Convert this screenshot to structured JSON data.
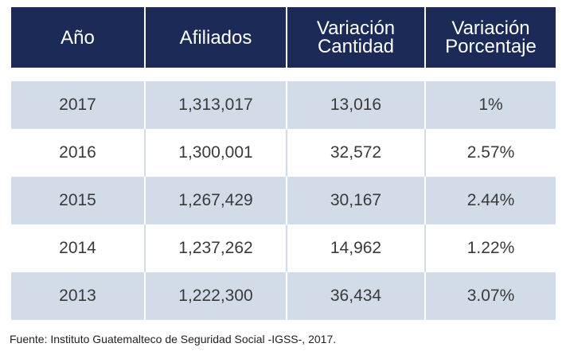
{
  "table": {
    "headers": [
      "Año",
      "Afiliados",
      "Variación Cantidad",
      "Variación Porcentaje"
    ],
    "rows": [
      [
        "2017",
        "1,313,017",
        "13,016",
        "1%"
      ],
      [
        "2016",
        "1,300,001",
        "32,572",
        "2.57%"
      ],
      [
        "2015",
        "1,267,429",
        "30,167",
        "2.44%"
      ],
      [
        "2014",
        "1,237,262",
        "14,962",
        "1.22%"
      ],
      [
        "2013",
        "1,222,300",
        "36,434",
        "3.07%"
      ]
    ]
  },
  "source": "Fuente: Instituto Guatemalteco de Seguridad Social -IGSS-, 2017.",
  "colors": {
    "header_bg": "#1b2a57",
    "header_text": "#ffffff",
    "shaded_row": "#d2dbe8",
    "plain_row": "#ffffff",
    "cell_text": "#3a3a3a"
  }
}
